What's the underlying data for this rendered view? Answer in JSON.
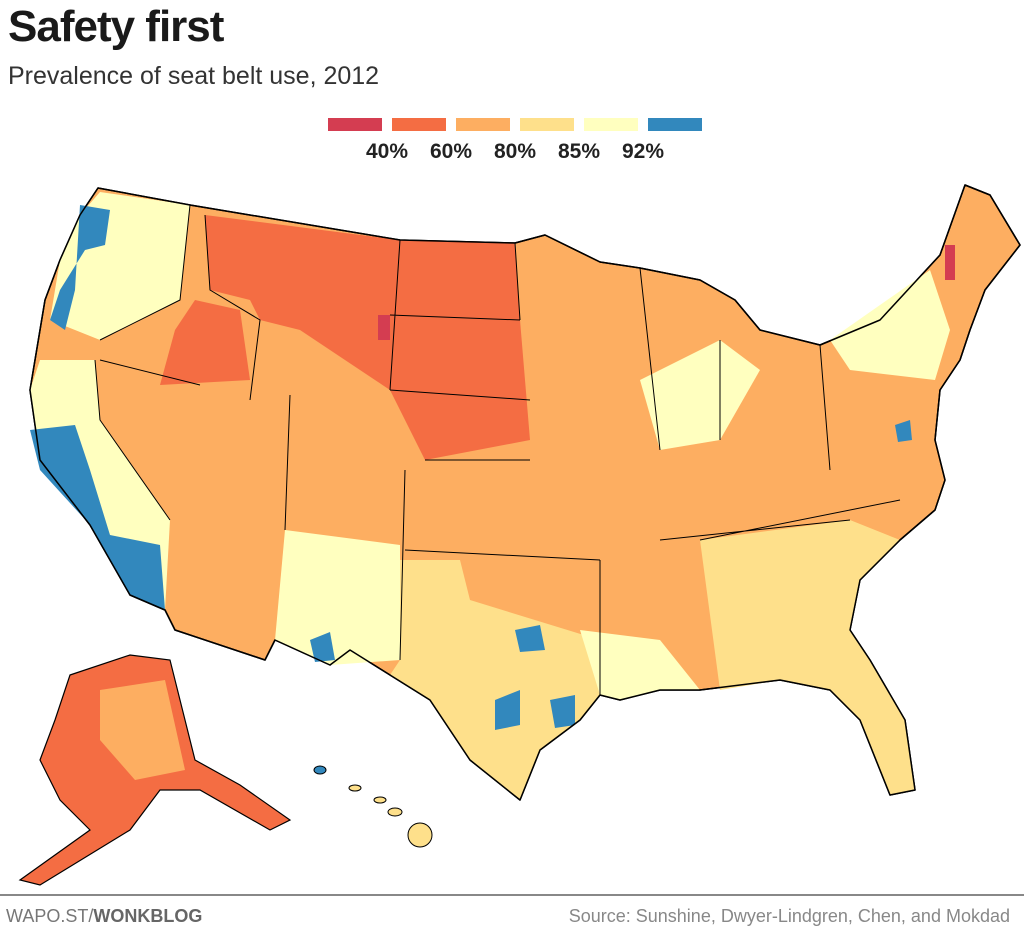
{
  "title": "Safety first",
  "subtitle": "Prevalence of seat belt use, 2012",
  "legend": {
    "colors": [
      "#d43d51",
      "#f46d43",
      "#fdae61",
      "#fee08b",
      "#ffffbf",
      "#3288bd"
    ],
    "labels": [
      "40%",
      "60%",
      "80%",
      "85%",
      "92%"
    ]
  },
  "map": {
    "type": "choropleth",
    "geography": "US counties",
    "colors": {
      "very_low": "#d43d51",
      "low": "#f46d43",
      "mid": "#fdae61",
      "midhigh": "#fee08b",
      "high": "#ffffbf",
      "very_high": "#3288bd"
    }
  },
  "footer": {
    "credit_prefix": "WAPO.ST/",
    "credit_bold": "WONKBLOG",
    "source": "Source: Sunshine, Dwyer-Lindgren, Chen, and Mokdad"
  }
}
